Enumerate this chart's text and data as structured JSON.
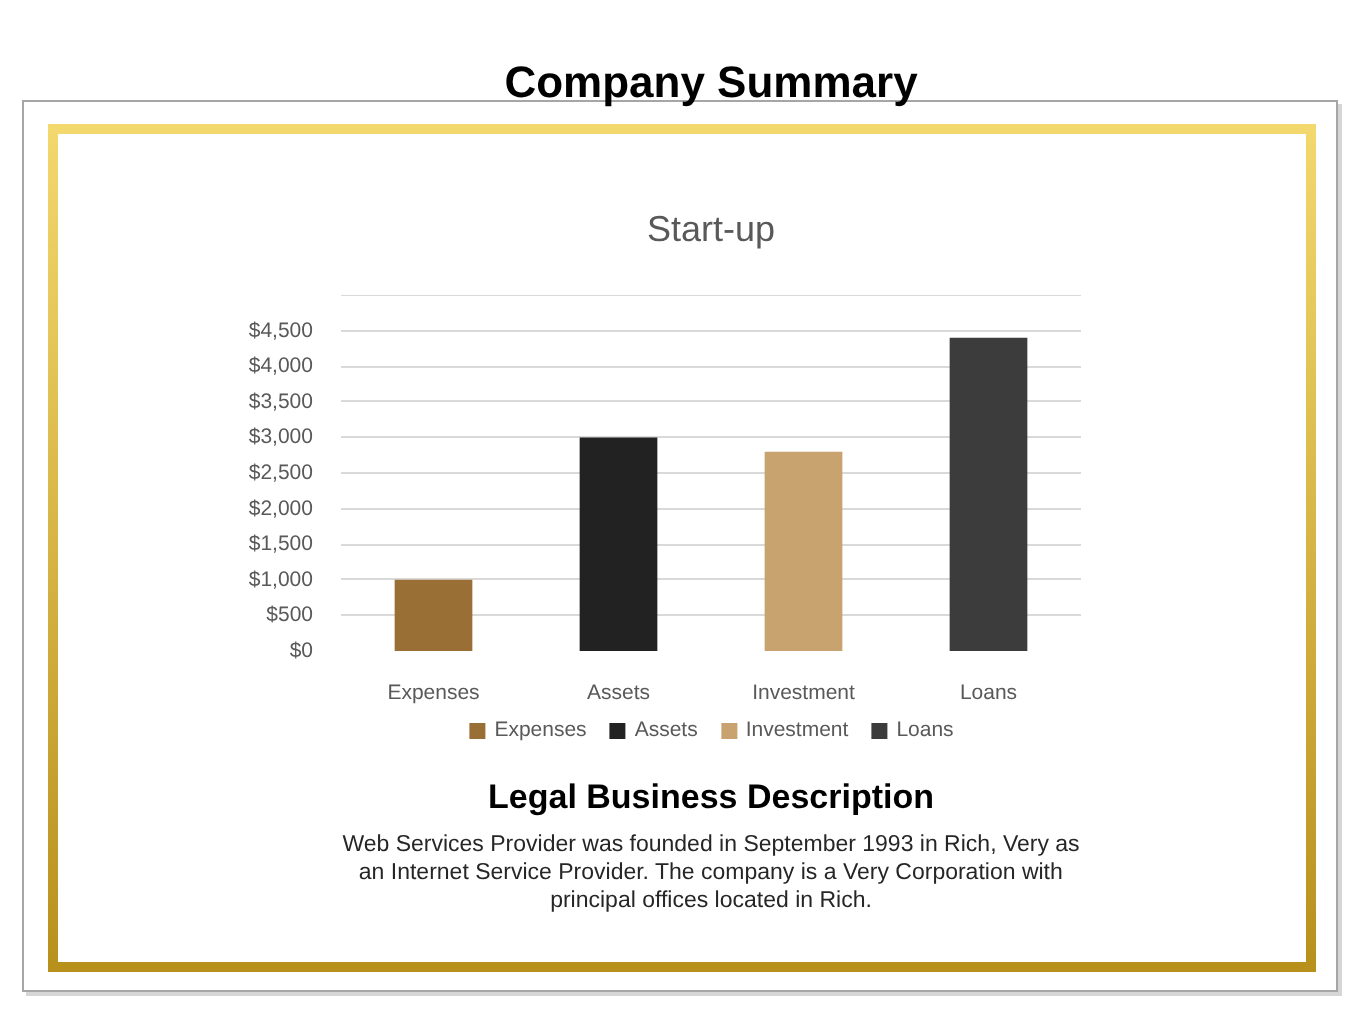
{
  "chart_data": {
    "type": "bar",
    "title": "Company Summary",
    "subtitle": "Start-up",
    "categories": [
      "Expenses",
      "Assets",
      "Investment",
      "Loans"
    ],
    "series": [
      {
        "name": "Expenses",
        "color": "#9a6f36",
        "values": [
          1000,
          null,
          null,
          null
        ]
      },
      {
        "name": "Assets",
        "color": "#222222",
        "values": [
          null,
          3000,
          null,
          null
        ]
      },
      {
        "name": "Investment",
        "color": "#c8a26f",
        "values": [
          null,
          null,
          2800,
          null
        ]
      },
      {
        "name": "Loans",
        "color": "#3c3c3c",
        "values": [
          null,
          null,
          null,
          4400
        ]
      }
    ],
    "ylim": [
      0,
      5000
    ],
    "yticks": [
      {
        "value": 0,
        "label": "$0"
      },
      {
        "value": 500,
        "label": "$500"
      },
      {
        "value": 1000,
        "label": "$1,000"
      },
      {
        "value": 1500,
        "label": "$1,500"
      },
      {
        "value": 2000,
        "label": "$2,000"
      },
      {
        "value": 2500,
        "label": "$2,500"
      },
      {
        "value": 3000,
        "label": "$3,000"
      },
      {
        "value": 3500,
        "label": "$3,500"
      },
      {
        "value": 4000,
        "label": "$4,000"
      },
      {
        "value": 4500,
        "label": "$4,500"
      },
      {
        "value": 5000,
        "label": null
      }
    ],
    "grid": "y",
    "legend": "bottom",
    "annotations": [
      "Legal Business Description",
      "Web Services Provider was founded in September 1993 in Rich, Very as an Internet Service Provider. The company is a Very Corporation with principal offices located in Rich."
    ]
  }
}
